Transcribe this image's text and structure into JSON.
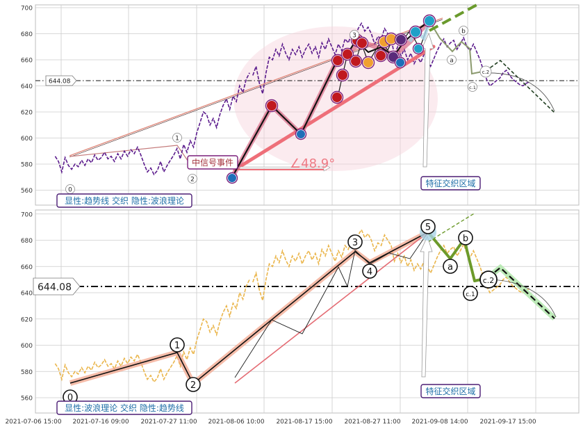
{
  "chart_data": [
    {
      "type": "line",
      "panel": "top",
      "ylim": [
        548,
        702
      ],
      "yticks": [
        560,
        580,
        600,
        620,
        640,
        660,
        680,
        700
      ],
      "grid": true,
      "reference_line": {
        "value": 644.08,
        "label": "644.08",
        "style": "dash-dot"
      },
      "caption": "显性:趋势线 交织 隐性:波浪理论",
      "event_label": "中信号事件",
      "angle_label": "∠48.9°",
      "zone_label": "特征交织区域",
      "wave_labels": [
        "0",
        "1",
        "2",
        "3",
        "a",
        "b",
        "c.1",
        "c.2"
      ],
      "series": [
        {
          "style": "price-dashed-purple",
          "x": [
            1.2,
            1.4,
            1.6,
            1.8,
            2.0,
            2.2,
            2.4,
            2.6,
            2.8,
            3.0,
            3.2,
            3.4,
            3.6,
            3.8,
            4.0,
            4.2,
            4.4,
            4.6,
            4.8,
            5.0,
            5.2,
            5.4,
            5.6,
            5.8,
            6.0,
            6.2,
            6.4,
            6.6,
            6.8,
            7.0,
            7.2,
            7.4,
            7.6,
            7.8,
            8.0,
            8.2,
            8.4,
            8.6,
            8.8,
            9.0,
            9.2,
            9.4,
            9.6,
            9.8,
            10.0,
            10.2,
            10.4,
            10.6,
            10.8,
            11.0,
            11.2,
            11.4,
            11.6,
            11.8,
            12.0,
            12.2,
            12.4,
            12.6,
            12.8,
            13.0
          ],
          "y": [
            586,
            582,
            574,
            585,
            579,
            576,
            580,
            578,
            583,
            579,
            584,
            581,
            587,
            583,
            585,
            589,
            584,
            586,
            582,
            588,
            584,
            590,
            586,
            591,
            588,
            593,
            587,
            580,
            574,
            577,
            572,
            575,
            582,
            574,
            579,
            583,
            587,
            592,
            584,
            595,
            589,
            598,
            593,
            604,
            612,
            620,
            618,
            610,
            615,
            608,
            618,
            625,
            630,
            622,
            632,
            628,
            640,
            635,
            645,
            650
          ]
        },
        {
          "style": "price-dashed-purple",
          "x": [
            13.2,
            13.4,
            13.6,
            13.8,
            14.0,
            14.2,
            14.4,
            14.6,
            14.8,
            15.0,
            15.2,
            15.4,
            15.6,
            15.8,
            16.0,
            16.2,
            16.4,
            16.6,
            16.8,
            17.0,
            17.2,
            17.4,
            17.6,
            17.8,
            18.0,
            18.2,
            18.4,
            18.6,
            18.8,
            19.0,
            19.2,
            19.4,
            19.6,
            19.8,
            20.0,
            20.2,
            20.4,
            20.6,
            20.8,
            21.0,
            21.2,
            21.4,
            21.6,
            21.8,
            22.0,
            22.2,
            22.4,
            22.6,
            22.8,
            23.0,
            23.2,
            23.4,
            23.6,
            23.8,
            24.0,
            24.2,
            24.4,
            24.6,
            24.8,
            25.0,
            25.2,
            25.4,
            25.6,
            25.8,
            26.0,
            26.2,
            26.4,
            26.6,
            26.8,
            27.0,
            27.2,
            27.4,
            27.6,
            27.8,
            28.0,
            28.2,
            28.4,
            28.6,
            28.8,
            29.0,
            29.2,
            29.4,
            29.6,
            29.8,
            30.0
          ],
          "y": [
            648,
            655,
            642,
            634,
            650,
            662,
            660,
            668,
            663,
            672,
            665,
            660,
            668,
            664,
            670,
            662,
            668,
            672,
            665,
            670,
            662,
            673,
            668,
            676,
            670,
            664,
            672,
            667,
            676,
            673,
            680,
            676,
            684,
            688,
            682,
            685,
            680,
            672,
            678,
            676,
            684,
            680,
            676,
            664,
            670,
            663,
            668,
            660,
            665,
            657,
            662,
            658,
            664,
            660,
            655,
            661,
            667,
            672,
            676,
            670,
            673,
            675,
            668,
            672,
            677,
            670,
            667,
            672,
            666,
            660,
            652,
            645,
            640,
            642,
            644,
            646,
            650,
            652,
            648,
            645,
            643,
            641,
            640,
            642,
            643
          ]
        }
      ]
    },
    {
      "type": "line",
      "panel": "bottom",
      "ylim": [
        548,
        702
      ],
      "yticks": [
        560,
        580,
        600,
        620,
        640,
        660,
        680,
        700
      ],
      "grid": true,
      "reference_line": {
        "value": 644.08,
        "label": "644.08",
        "style": "dash-dot"
      },
      "caption": "显性:波浪理论 交织 隐性:趋势线",
      "zone_label": "特征交织区域",
      "wave_labels": [
        "0",
        "1",
        "2",
        "3",
        "4",
        "5",
        "a",
        "b",
        "c.1",
        "c.2"
      ],
      "xlabels": [
        "2021-07-06 15:00",
        "2021-07-16 09:00",
        "2021-07-27 11:00",
        "2021-08-06 10:00",
        "2021-08-17 15:00",
        "2021-08-27 11:00",
        "2021-09-08 14:00",
        "2021-09-17 15:00"
      ],
      "series": [
        {
          "style": "price-dashed-orange",
          "x": [
            1.2,
            1.4,
            1.6,
            1.8,
            2.0,
            2.2,
            2.4,
            2.6,
            2.8,
            3.0,
            3.2,
            3.4,
            3.6,
            3.8,
            4.0,
            4.2,
            4.4,
            4.6,
            4.8,
            5.0,
            5.2,
            5.4,
            5.6,
            5.8,
            6.0,
            6.2,
            6.4,
            6.6,
            6.8,
            7.0,
            7.2,
            7.4,
            7.6,
            7.8,
            8.0,
            8.2,
            8.4,
            8.6,
            8.8,
            9.0,
            9.2,
            9.4,
            9.6,
            9.8,
            10.0,
            10.2,
            10.4,
            10.6,
            10.8,
            11.0,
            11.2,
            11.4,
            11.6,
            11.8,
            12.0,
            12.2,
            12.4,
            12.6,
            12.8,
            13.0
          ],
          "y": [
            586,
            582,
            574,
            585,
            579,
            576,
            580,
            578,
            583,
            579,
            584,
            581,
            587,
            583,
            585,
            589,
            584,
            586,
            582,
            588,
            584,
            590,
            586,
            591,
            588,
            593,
            587,
            580,
            574,
            577,
            572,
            575,
            582,
            574,
            579,
            583,
            587,
            592,
            584,
            595,
            589,
            598,
            593,
            604,
            612,
            620,
            618,
            610,
            615,
            608,
            618,
            625,
            630,
            622,
            632,
            628,
            640,
            635,
            645,
            650
          ]
        },
        {
          "style": "price-dashed-orange",
          "x": [
            13.2,
            13.4,
            13.6,
            13.8,
            14.0,
            14.2,
            14.4,
            14.6,
            14.8,
            15.0,
            15.2,
            15.4,
            15.6,
            15.8,
            16.0,
            16.2,
            16.4,
            16.6,
            16.8,
            17.0,
            17.2,
            17.4,
            17.6,
            17.8,
            18.0,
            18.2,
            18.4,
            18.6,
            18.8,
            19.0,
            19.2,
            19.4,
            19.6,
            19.8,
            20.0,
            20.2,
            20.4,
            20.6,
            20.8,
            21.0,
            21.2,
            21.4,
            21.6,
            21.8,
            22.0,
            22.2,
            22.4,
            22.6,
            22.8,
            23.0,
            23.2,
            23.4,
            23.6,
            23.8,
            24.0,
            24.2,
            24.4,
            24.6,
            24.8,
            25.0,
            25.2,
            25.4,
            25.6,
            25.8,
            26.0,
            26.2,
            26.4,
            26.6,
            26.8,
            27.0,
            27.2,
            27.4,
            27.6,
            27.8,
            28.0,
            28.2,
            28.4,
            28.6,
            28.8,
            29.0,
            29.2,
            29.4,
            29.6,
            29.8,
            30.0
          ],
          "y": [
            648,
            655,
            642,
            634,
            650,
            662,
            660,
            668,
            663,
            672,
            665,
            660,
            668,
            664,
            670,
            662,
            668,
            672,
            665,
            670,
            662,
            673,
            668,
            676,
            670,
            664,
            672,
            667,
            676,
            673,
            680,
            676,
            684,
            688,
            682,
            685,
            680,
            672,
            678,
            676,
            684,
            680,
            676,
            664,
            670,
            663,
            668,
            660,
            665,
            657,
            662,
            658,
            664,
            660,
            655,
            661,
            667,
            672,
            676,
            670,
            673,
            675,
            668,
            672,
            677,
            670,
            667,
            672,
            666,
            660,
            652,
            645,
            640,
            642,
            644,
            646,
            650,
            652,
            648,
            645,
            643,
            641,
            640,
            642,
            643
          ]
        }
      ]
    }
  ]
}
